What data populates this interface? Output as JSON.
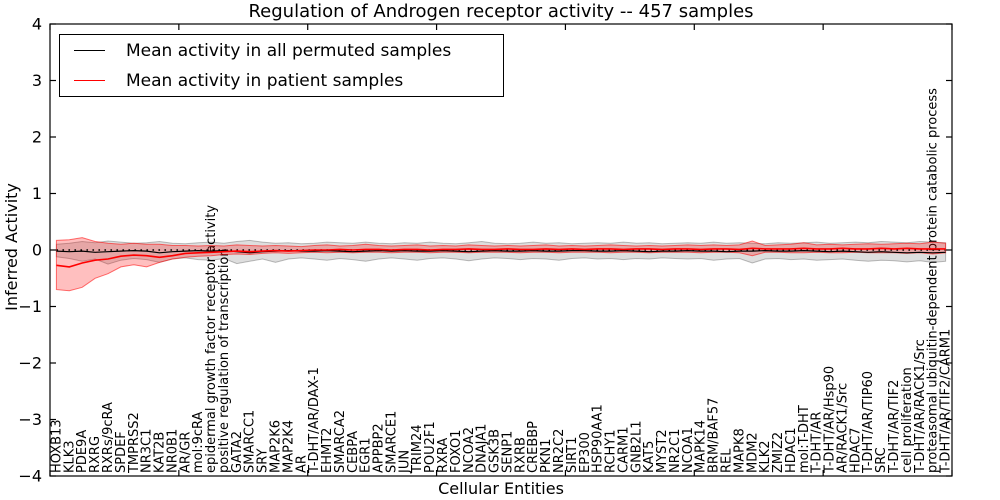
{
  "chart_data": {
    "type": "line",
    "title": "Regulation of Androgen receptor activity -- 457 samples",
    "xlabel": "Cellular Entities",
    "ylabel": "Inferred Activity",
    "n_samples": 457,
    "ylim": [
      -4,
      4
    ],
    "yticks": [
      4,
      3,
      2,
      1,
      0,
      -1,
      -2,
      -3,
      -4
    ],
    "ytick_labels": [
      "4",
      "3",
      "2",
      "1",
      "0",
      "−1",
      "−2",
      "−3",
      "−4"
    ],
    "xlim": [
      0,
      70
    ],
    "xticks": [
      0,
      10,
      20,
      30,
      40,
      50,
      60,
      70
    ],
    "grid": false,
    "legend_position": "upper left",
    "categories": [
      "HOXB13",
      "KLK3",
      "PDE9A",
      "RXRG",
      "RXRs/9cRA",
      "SPDEF",
      "TMPRSS2",
      "NR3C1",
      "KAT2B",
      "NR0B1",
      "AR/GR",
      "mol:9cRA",
      "epidermal growth factor receptor activity",
      "positive regulation of transcription",
      "GATA2",
      "SMARCC1",
      "SRY",
      "MAP2K6",
      "MAP2K4",
      "AR",
      "T-DHT/AR/DAX-1",
      "EHMT2",
      "SMARCA2",
      "CEBPA",
      "EGR1",
      "APPBP2",
      "SMARCE1",
      "JUN",
      "TRIM24",
      "POU2F1",
      "RXRA",
      "FOXO1",
      "NCOA2",
      "DNAJA1",
      "GSK3B",
      "SENP1",
      "RXRB",
      "CREBBP",
      "PKN1",
      "NR2C2",
      "SIRT1",
      "EP300",
      "HSP90AA1",
      "RCHY1",
      "CARM1",
      "GNB2L1",
      "KAT5",
      "MYST2",
      "NR2C1",
      "NCOA1",
      "MAPK14",
      "BRM/BAF57",
      "REL",
      "MAPK8",
      "MDM2",
      "KLK2",
      "ZMIZ2",
      "HDAC1",
      "mol:T-DHT",
      "T-DHT/AR",
      "T-DHT/AR/Hsp90",
      "AR/RACK1/Src",
      "HDAC7",
      "T-DHT/AR/TIP60",
      "SRC",
      "T-DHT/AR/TIF2",
      "cell proliferation",
      "T-DHT/AR/RACK1/Src",
      "proteasomal ubiquitin-dependent protein catabolic process",
      "T-DHT/AR/TIF2/CARM1"
    ],
    "series": [
      {
        "name": "Mean activity in all permuted samples",
        "color": "#000000",
        "style": "solid",
        "values": [
          -0.02,
          -0.03,
          -0.02,
          -0.04,
          -0.03,
          -0.02,
          -0.01,
          -0.02,
          -0.05,
          -0.03,
          -0.02,
          -0.01,
          -0.02,
          -0.01,
          -0.03,
          -0.05,
          -0.03,
          -0.02,
          -0.01,
          -0.02,
          -0.02,
          -0.01,
          -0.02,
          -0.03,
          -0.02,
          -0.01,
          -0.02,
          -0.01,
          -0.02,
          -0.02,
          -0.01,
          -0.02,
          -0.03,
          -0.02,
          -0.01,
          -0.02,
          -0.02,
          -0.01,
          -0.02,
          -0.02,
          -0.01,
          -0.01,
          -0.02,
          -0.02,
          -0.01,
          -0.02,
          -0.03,
          -0.02,
          -0.02,
          -0.01,
          -0.02,
          -0.02,
          -0.03,
          -0.02,
          -0.02,
          -0.01,
          -0.02,
          -0.02,
          -0.01,
          -0.02,
          -0.03,
          -0.02,
          -0.03,
          -0.04,
          -0.03,
          -0.04,
          -0.05,
          -0.04,
          -0.05,
          -0.04
        ]
      },
      {
        "name": "Mean activity in patient samples",
        "color": "#ff0000",
        "style": "solid",
        "values": [
          -0.27,
          -0.3,
          -0.23,
          -0.18,
          -0.16,
          -0.11,
          -0.09,
          -0.1,
          -0.13,
          -0.1,
          -0.06,
          -0.05,
          -0.04,
          -0.03,
          -0.02,
          -0.03,
          -0.02,
          -0.01,
          -0.02,
          -0.01,
          0.0,
          0.0,
          0.01,
          0.0,
          0.01,
          0.01,
          0.0,
          0.01,
          0.01,
          0.0,
          0.01,
          0.01,
          0.02,
          0.01,
          0.01,
          0.02,
          0.01,
          0.01,
          0.02,
          0.01,
          0.02,
          0.01,
          0.02,
          0.02,
          0.01,
          0.02,
          0.02,
          0.01,
          0.02,
          0.02,
          0.01,
          0.02,
          0.02,
          0.01,
          0.03,
          0.02,
          0.02,
          0.02,
          0.03,
          0.02,
          0.02,
          0.03,
          0.02,
          0.02,
          0.03,
          0.02,
          0.03,
          0.02,
          0.02,
          0.02
        ]
      }
    ],
    "bands": [
      {
        "name": "permuted-samples-std-band",
        "fill": "rgba(0,0,0,0.13)",
        "edge": "rgba(0,0,0,0.25)",
        "upper": [
          0.1,
          0.12,
          0.15,
          0.13,
          0.16,
          0.14,
          0.12,
          0.13,
          0.15,
          0.12,
          0.11,
          0.13,
          0.14,
          0.12,
          0.15,
          0.17,
          0.14,
          0.12,
          0.13,
          0.11,
          0.12,
          0.14,
          0.13,
          0.12,
          0.14,
          0.12,
          0.11,
          0.13,
          0.12,
          0.14,
          0.12,
          0.11,
          0.13,
          0.15,
          0.12,
          0.11,
          0.12,
          0.14,
          0.12,
          0.13,
          0.11,
          0.12,
          0.13,
          0.12,
          0.14,
          0.12,
          0.13,
          0.11,
          0.12,
          0.13,
          0.12,
          0.14,
          0.12,
          0.13,
          0.12,
          0.11,
          0.13,
          0.12,
          0.13,
          0.14,
          0.12,
          0.13,
          0.14,
          0.13,
          0.15,
          0.14,
          0.13,
          0.15,
          0.14,
          0.13
        ],
        "lower": [
          -0.12,
          -0.15,
          -0.2,
          -0.16,
          -0.25,
          -0.18,
          -0.15,
          -0.17,
          -0.22,
          -0.16,
          -0.14,
          -0.17,
          -0.18,
          -0.15,
          -0.24,
          -0.2,
          -0.16,
          -0.22,
          -0.16,
          -0.14,
          -0.16,
          -0.18,
          -0.15,
          -0.17,
          -0.2,
          -0.16,
          -0.14,
          -0.16,
          -0.18,
          -0.15,
          -0.14,
          -0.16,
          -0.19,
          -0.16,
          -0.14,
          -0.15,
          -0.17,
          -0.15,
          -0.16,
          -0.18,
          -0.15,
          -0.14,
          -0.16,
          -0.15,
          -0.17,
          -0.15,
          -0.16,
          -0.14,
          -0.15,
          -0.16,
          -0.15,
          -0.18,
          -0.16,
          -0.15,
          -0.23,
          -0.16,
          -0.15,
          -0.17,
          -0.16,
          -0.18,
          -0.17,
          -0.16,
          -0.18,
          -0.2,
          -0.18,
          -0.19,
          -0.21,
          -0.19,
          -0.22,
          -0.2
        ]
      },
      {
        "name": "patient-samples-std-band",
        "fill": "rgba(255,0,0,0.25)",
        "edge": "rgba(255,0,0,0.55)",
        "upper": [
          0.17,
          0.18,
          0.22,
          0.15,
          0.12,
          0.1,
          0.12,
          0.1,
          0.1,
          0.08,
          0.08,
          0.07,
          0.08,
          0.07,
          0.09,
          0.08,
          0.07,
          0.08,
          0.07,
          0.06,
          0.08,
          0.09,
          0.07,
          0.08,
          0.1,
          0.08,
          0.07,
          0.08,
          0.09,
          0.07,
          0.08,
          0.07,
          0.09,
          0.08,
          0.07,
          0.08,
          0.07,
          0.08,
          0.09,
          0.07,
          0.08,
          0.07,
          0.08,
          0.09,
          0.08,
          0.07,
          0.08,
          0.07,
          0.08,
          0.09,
          0.08,
          0.09,
          0.08,
          0.09,
          0.16,
          0.08,
          0.09,
          0.1,
          0.13,
          0.09,
          0.1,
          0.09,
          0.1,
          0.11,
          0.1,
          0.11,
          0.12,
          0.11,
          0.14,
          0.12
        ],
        "lower": [
          -0.7,
          -0.72,
          -0.66,
          -0.5,
          -0.42,
          -0.3,
          -0.26,
          -0.3,
          -0.22,
          -0.16,
          -0.13,
          -0.11,
          -0.1,
          -0.08,
          -0.07,
          -0.08,
          -0.06,
          -0.05,
          -0.06,
          -0.05,
          -0.04,
          -0.05,
          -0.04,
          -0.05,
          -0.04,
          -0.04,
          -0.05,
          -0.04,
          -0.04,
          -0.05,
          -0.04,
          -0.04,
          -0.05,
          -0.04,
          -0.04,
          -0.04,
          -0.05,
          -0.04,
          -0.04,
          -0.05,
          -0.04,
          -0.04,
          -0.04,
          -0.05,
          -0.04,
          -0.04,
          -0.05,
          -0.04,
          -0.04,
          -0.04,
          -0.05,
          -0.04,
          -0.04,
          -0.05,
          -0.1,
          -0.04,
          -0.04,
          -0.05,
          -0.05,
          -0.04,
          -0.05,
          -0.05,
          -0.04,
          -0.05,
          -0.05,
          -0.05,
          -0.06,
          -0.05,
          -0.07,
          -0.05
        ]
      }
    ],
    "zero_line": {
      "y": 0,
      "style": "dotted",
      "color": "#000000"
    }
  }
}
